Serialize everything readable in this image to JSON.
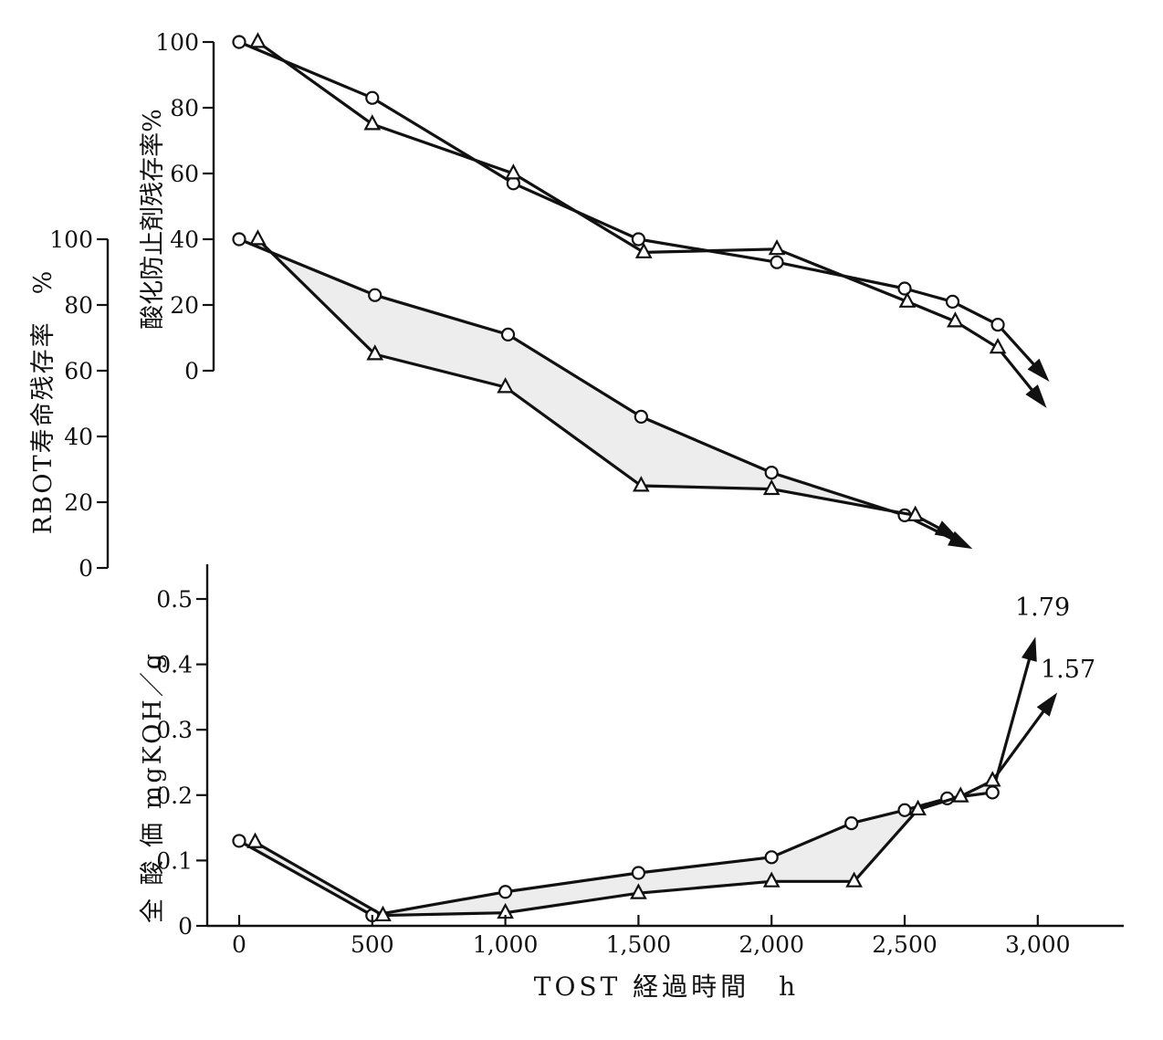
{
  "chart_data": [
    {
      "id": "antioxidant",
      "type": "line",
      "ylabel": "酸化防止剤残存率%",
      "ylim": [
        0,
        100
      ],
      "y_ticks": [
        "0",
        "20",
        "40",
        "60",
        "80",
        "100"
      ],
      "fill_between": false,
      "series": [
        {
          "marker": "circle",
          "points": [
            [
              0,
              100
            ],
            [
              500,
              83
            ],
            [
              1030,
              57
            ],
            [
              1500,
              40
            ],
            [
              2020,
              33
            ],
            [
              2500,
              25
            ],
            [
              2680,
              21
            ],
            [
              2850,
              14
            ]
          ],
          "trend_arrow_to": [
            3040,
            -3
          ]
        },
        {
          "marker": "triangle",
          "points": [
            [
              70,
              100
            ],
            [
              500,
              75
            ],
            [
              1030,
              60
            ],
            [
              1520,
              36
            ],
            [
              2020,
              37
            ],
            [
              2510,
              21
            ],
            [
              2690,
              15
            ],
            [
              2850,
              7
            ]
          ],
          "trend_arrow_to": [
            3030,
            -11
          ]
        }
      ]
    },
    {
      "id": "rbot",
      "type": "line",
      "ylabel": "RBOT寿命残存率　%",
      "ylim": [
        0,
        100
      ],
      "y_ticks": [
        "0",
        "20",
        "40",
        "60",
        "80",
        "100"
      ],
      "fill_between": true,
      "series": [
        {
          "marker": "circle",
          "points": [
            [
              0,
              100
            ],
            [
              510,
              83
            ],
            [
              1010,
              71
            ],
            [
              1510,
              46
            ],
            [
              2000,
              29
            ],
            [
              2500,
              16
            ]
          ],
          "trend_arrow_to": [
            2750,
            6
          ]
        },
        {
          "marker": "triangle",
          "points": [
            [
              70,
              100
            ],
            [
              510,
              65
            ],
            [
              1000,
              55
            ],
            [
              1510,
              25
            ],
            [
              2000,
              24
            ],
            [
              2540,
              16
            ]
          ],
          "trend_arrow_to": [
            2700,
            9
          ]
        }
      ]
    },
    {
      "id": "total_acid",
      "type": "line",
      "ylabel": "全 酸 価 mgKOH／g",
      "xlabel": "TOST 経過時間　h",
      "ylim": [
        0,
        0.5
      ],
      "y_ticks": [
        "0",
        "0.1",
        "0.2",
        "0.3",
        "0.4",
        "0.5"
      ],
      "x_ticks": [
        "0",
        "500",
        "1,000",
        "1,500",
        "2,000",
        "2,500",
        "3,000"
      ],
      "fill_between": true,
      "annotations": [
        {
          "text": "1.79",
          "value": 1.79
        },
        {
          "text": "1.57",
          "value": 1.57
        }
      ],
      "series": [
        {
          "marker": "circle",
          "points": [
            [
              0,
              0.13
            ],
            [
              500,
              0.016
            ],
            [
              1000,
              0.052
            ],
            [
              1500,
              0.081
            ],
            [
              2000,
              0.105
            ],
            [
              2300,
              0.157
            ],
            [
              2500,
              0.177
            ],
            [
              2660,
              0.195
            ],
            [
              2830,
              0.204
            ]
          ],
          "trend_arrow_to": [
            2990,
            0.44
          ]
        },
        {
          "marker": "triangle",
          "points": [
            [
              60,
              0.128
            ],
            [
              540,
              0.016
            ],
            [
              1000,
              0.02
            ],
            [
              1500,
              0.05
            ],
            [
              2000,
              0.068
            ],
            [
              2310,
              0.068
            ],
            [
              2550,
              0.178
            ],
            [
              2710,
              0.198
            ],
            [
              2830,
              0.222
            ]
          ],
          "trend_arrow_to": [
            3070,
            0.355
          ]
        }
      ]
    }
  ]
}
